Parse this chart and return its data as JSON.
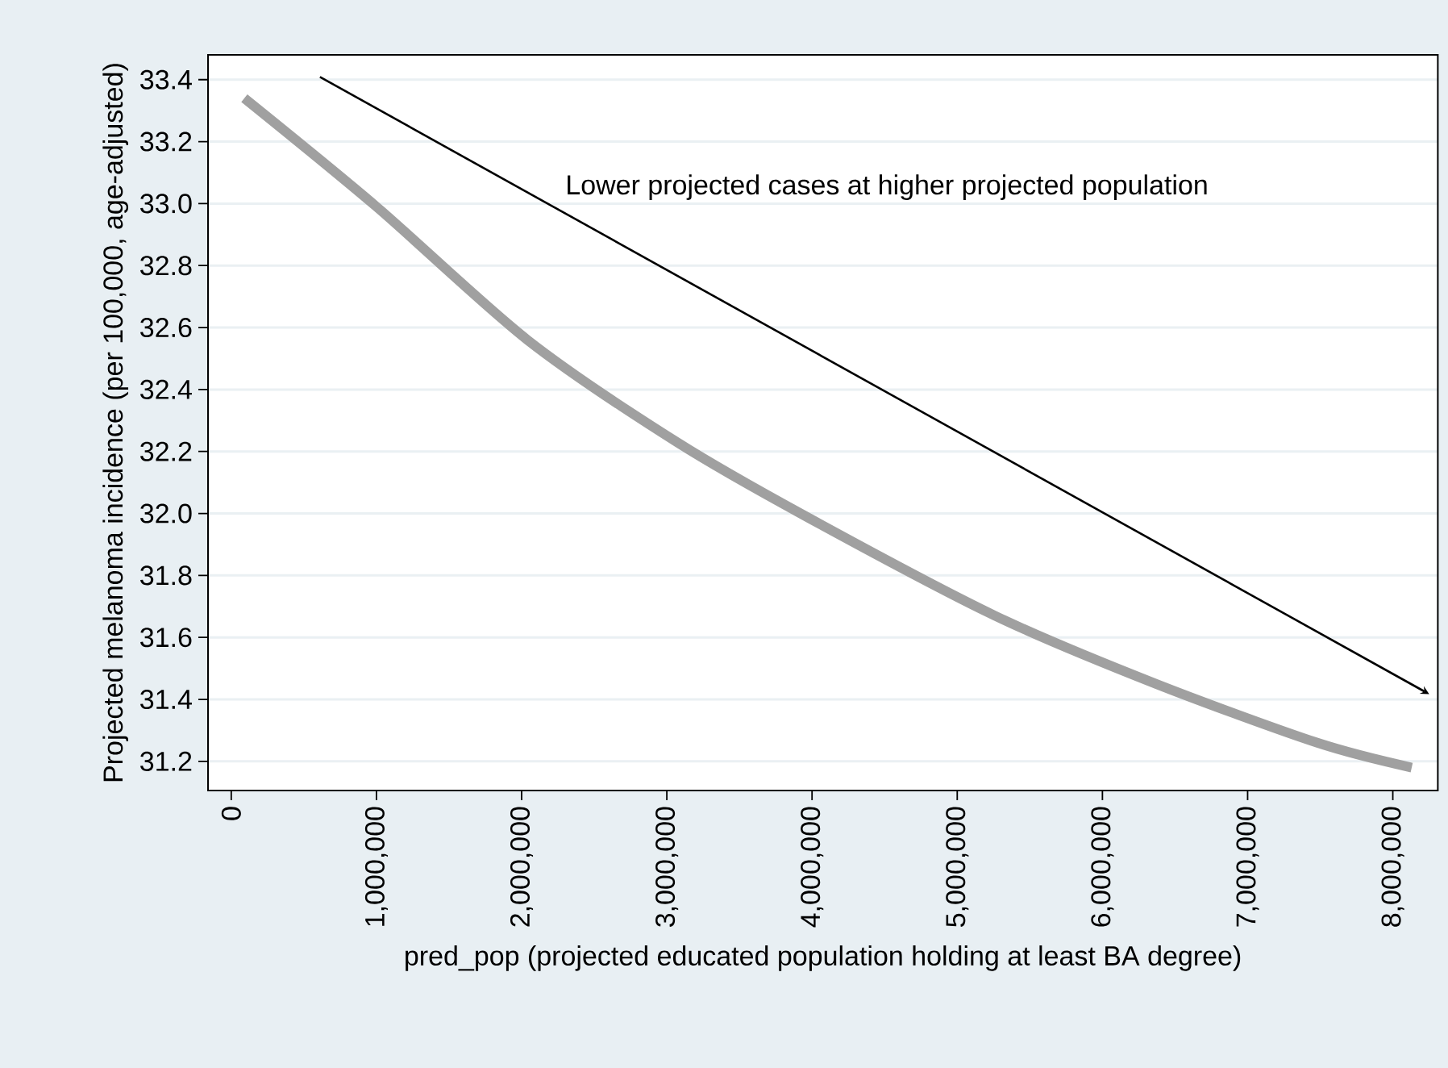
{
  "chart_data": {
    "type": "line",
    "xlabel": "pred_pop (projected educated population holding at least BA degree)",
    "ylabel": "Projected melanoma incidence (per 100,000, age-adjusted)",
    "annotations": [
      "Lower projected cases at higher projected population"
    ],
    "x": [
      90000,
      1000000,
      2040000,
      3070000,
      3960000,
      5260000,
      6370000,
      7480000,
      8130000
    ],
    "series": [
      {
        "color": "#a0a0a0",
        "values": [
          33.34,
          32.99,
          32.56,
          32.23,
          31.99,
          31.67,
          31.45,
          31.26,
          31.18
        ]
      }
    ],
    "xlim": [
      -160000,
      8310000
    ],
    "ylim": [
      31.106,
      33.48
    ],
    "xticks": [
      0,
      {
        "value": 1000000,
        "label": "1,000,000"
      },
      {
        "value": 2000000,
        "label": "2,000,000"
      },
      {
        "value": 3000000,
        "label": "3,000,000"
      },
      {
        "value": 4000000,
        "label": "4,000,000"
      },
      {
        "value": 5000000,
        "label": "5,000,000"
      },
      {
        "value": 6000000,
        "label": "6,000,000"
      },
      {
        "value": 7000000,
        "label": "7,000,000"
      },
      {
        "value": 8000000,
        "label": "8,000,000"
      }
    ],
    "yticks": [
      31.2,
      31.4,
      31.6,
      31.8,
      {
        "value": 32.0,
        "label": "32.0"
      },
      32.2,
      32.4,
      32.6,
      32.8,
      {
        "value": 33.0,
        "label": "33.0"
      },
      33.2,
      33.4
    ],
    "grid": "y"
  }
}
